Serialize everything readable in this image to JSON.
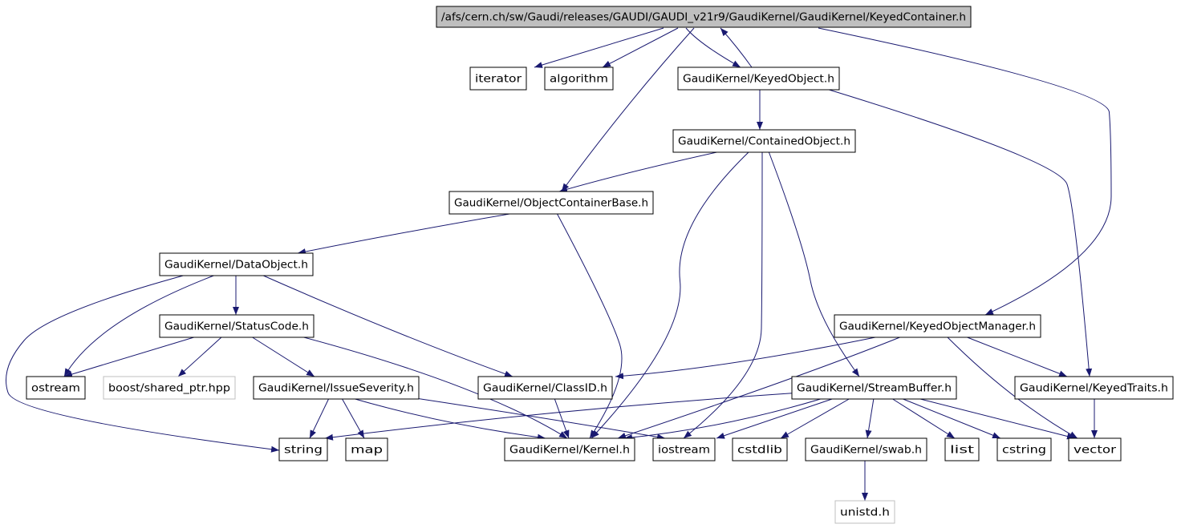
{
  "colors": {
    "edge": "#191970",
    "node_border": "#000000",
    "missing_border": "#bfbfbf",
    "root_fill": "#bfbfbf",
    "node_fill": "#ffffff"
  },
  "nodes": [
    {
      "id": "keyedcontainer",
      "label": "/afs/cern.ch/sw/Gaudi/releases/GAUDI/GAUDI_v21r9/GaudiKernel/GaudiKernel/KeyedContainer.h",
      "kind": "root"
    },
    {
      "id": "iterator",
      "label": "iterator",
      "kind": "normal"
    },
    {
      "id": "algorithm",
      "label": "algorithm",
      "kind": "normal"
    },
    {
      "id": "keyedobject",
      "label": "GaudiKernel/KeyedObject.h",
      "kind": "normal"
    },
    {
      "id": "containedobject",
      "label": "GaudiKernel/ContainedObject.h",
      "kind": "normal"
    },
    {
      "id": "objectcontainerbase",
      "label": "GaudiKernel/ObjectContainerBase.h",
      "kind": "normal"
    },
    {
      "id": "dataobject",
      "label": "GaudiKernel/DataObject.h",
      "kind": "normal"
    },
    {
      "id": "statuscode",
      "label": "GaudiKernel/StatusCode.h",
      "kind": "normal"
    },
    {
      "id": "keyedobjectmanager",
      "label": "GaudiKernel/KeyedObjectManager.h",
      "kind": "normal"
    },
    {
      "id": "ostream",
      "label": "ostream",
      "kind": "normal"
    },
    {
      "id": "shared_ptr",
      "label": "boost/shared_ptr.hpp",
      "kind": "missing"
    },
    {
      "id": "issueseverity",
      "label": "GaudiKernel/IssueSeverity.h",
      "kind": "normal"
    },
    {
      "id": "classid",
      "label": "GaudiKernel/ClassID.h",
      "kind": "normal"
    },
    {
      "id": "streambuffer",
      "label": "GaudiKernel/StreamBuffer.h",
      "kind": "normal"
    },
    {
      "id": "keyedtraits",
      "label": "GaudiKernel/KeyedTraits.h",
      "kind": "normal"
    },
    {
      "id": "string",
      "label": "string",
      "kind": "normal"
    },
    {
      "id": "map",
      "label": "map",
      "kind": "normal"
    },
    {
      "id": "kernel",
      "label": "GaudiKernel/Kernel.h",
      "kind": "normal"
    },
    {
      "id": "iostream",
      "label": "iostream",
      "kind": "normal"
    },
    {
      "id": "cstdlib",
      "label": "cstdlib",
      "kind": "normal"
    },
    {
      "id": "swab",
      "label": "GaudiKernel/swab.h",
      "kind": "normal"
    },
    {
      "id": "list",
      "label": "list",
      "kind": "normal"
    },
    {
      "id": "cstring",
      "label": "cstring",
      "kind": "normal"
    },
    {
      "id": "vector",
      "label": "vector",
      "kind": "normal"
    },
    {
      "id": "unistd",
      "label": "unistd.h",
      "kind": "missing"
    }
  ],
  "edges": [
    [
      "keyedcontainer",
      "iterator"
    ],
    [
      "keyedcontainer",
      "algorithm"
    ],
    [
      "keyedcontainer",
      "keyedobject"
    ],
    [
      "keyedcontainer",
      "objectcontainerbase"
    ],
    [
      "keyedcontainer",
      "keyedobjectmanager"
    ],
    [
      "keyedobject",
      "keyedcontainer"
    ],
    [
      "keyedobject",
      "containedobject"
    ],
    [
      "keyedobject",
      "keyedtraits"
    ],
    [
      "containedobject",
      "objectcontainerbase"
    ],
    [
      "containedobject",
      "kernel"
    ],
    [
      "containedobject",
      "iostream"
    ],
    [
      "containedobject",
      "streambuffer"
    ],
    [
      "objectcontainerbase",
      "dataobject"
    ],
    [
      "objectcontainerbase",
      "kernel"
    ],
    [
      "dataobject",
      "statuscode"
    ],
    [
      "dataobject",
      "ostream"
    ],
    [
      "dataobject",
      "string"
    ],
    [
      "dataobject",
      "classid"
    ],
    [
      "statuscode",
      "ostream"
    ],
    [
      "statuscode",
      "shared_ptr"
    ],
    [
      "statuscode",
      "issueseverity"
    ],
    [
      "statuscode",
      "kernel"
    ],
    [
      "issueseverity",
      "string"
    ],
    [
      "issueseverity",
      "map"
    ],
    [
      "issueseverity",
      "kernel"
    ],
    [
      "issueseverity",
      "iostream"
    ],
    [
      "classid",
      "kernel"
    ],
    [
      "keyedobjectmanager",
      "classid"
    ],
    [
      "keyedobjectmanager",
      "kernel"
    ],
    [
      "keyedobjectmanager",
      "keyedtraits"
    ],
    [
      "keyedobjectmanager",
      "vector"
    ],
    [
      "streambuffer",
      "string"
    ],
    [
      "streambuffer",
      "kernel"
    ],
    [
      "streambuffer",
      "iostream"
    ],
    [
      "streambuffer",
      "cstdlib"
    ],
    [
      "streambuffer",
      "swab"
    ],
    [
      "streambuffer",
      "list"
    ],
    [
      "streambuffer",
      "cstring"
    ],
    [
      "streambuffer",
      "vector"
    ],
    [
      "keyedtraits",
      "vector"
    ],
    [
      "swab",
      "unistd"
    ]
  ]
}
